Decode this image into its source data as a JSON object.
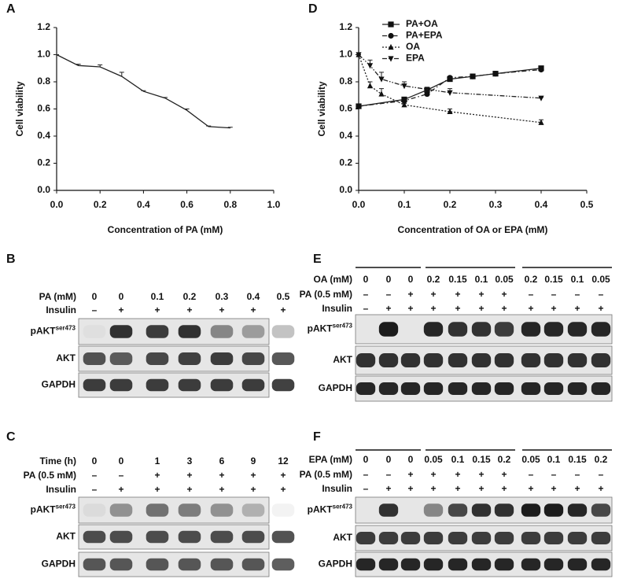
{
  "chart_data": [
    {
      "type": "line",
      "panel": "A",
      "xlabel": "Concentration of PA (mM)",
      "ylabel": "Cell viability",
      "xlim": [
        0,
        1
      ],
      "ylim": [
        0,
        1.2
      ],
      "xticks": [
        {
          "value": 0,
          "label": "0.0"
        },
        {
          "value": 0.2,
          "label": "0.2"
        },
        {
          "value": 0.4,
          "label": "0.4"
        },
        {
          "value": 0.6,
          "label": "0.6"
        },
        {
          "value": 0.8,
          "label": "0.8"
        },
        {
          "value": 1,
          "label": "1.0"
        }
      ],
      "yticks": [
        {
          "value": 0,
          "label": "0.0"
        },
        0.2,
        0.4,
        0.6,
        0.8,
        {
          "value": 1,
          "label": "1.0"
        },
        1.2
      ],
      "series": [
        {
          "color": "#222222",
          "marker": "none",
          "dash": "solid",
          "x": [
            0,
            0.1,
            0.2,
            0.3,
            0.4,
            0.5,
            0.6,
            0.7,
            0.8
          ],
          "values": [
            1.0,
            0.92,
            0.91,
            0.84,
            0.73,
            0.68,
            0.59,
            0.47,
            0.46
          ],
          "errors": [
            0,
            0.01,
            0.015,
            0.03,
            0.005,
            0.005,
            0.01,
            0.005,
            0.005
          ]
        }
      ]
    },
    {
      "type": "line",
      "panel": "D",
      "xlabel": "Concentration of OA or EPA (mM)",
      "ylabel": "Cell viability",
      "xlim": [
        0,
        0.5
      ],
      "ylim": [
        0,
        1.2
      ],
      "legend": "top",
      "xticks": [
        {
          "value": 0,
          "label": "0.0"
        },
        0.1,
        0.2,
        0.3,
        0.4,
        0.5
      ],
      "yticks": [
        {
          "value": 0,
          "label": "0.0"
        },
        0.2,
        0.4,
        0.6,
        0.8,
        {
          "value": 1,
          "label": "1.0"
        },
        1.2
      ],
      "series": [
        {
          "name": "PA+OA",
          "color": "#222222",
          "marker": "square",
          "dash": "solid",
          "x": [
            0,
            0.1,
            0.15,
            0.2,
            0.25,
            0.3,
            0.4
          ],
          "values": [
            0.62,
            0.67,
            0.74,
            0.82,
            0.84,
            0.86,
            0.9
          ],
          "errors": [
            0.01,
            0.01,
            0.02,
            0.01,
            0.005,
            0.005,
            0.01
          ]
        },
        {
          "name": "PA+EPA",
          "color": "#222222",
          "marker": "circle",
          "dash": "6 3 1.5 3",
          "x": [
            0,
            0.1,
            0.15,
            0.2,
            0.25,
            0.3,
            0.4
          ],
          "values": [
            0.62,
            0.66,
            0.71,
            0.83,
            0.84,
            0.86,
            0.89
          ],
          "errors": [
            0.01,
            0.01,
            0.02,
            0.01,
            0.005,
            0.005,
            0.01
          ]
        },
        {
          "name": "OA",
          "color": "#222222",
          "marker": "triangle-up",
          "dash": "2 2",
          "x": [
            0,
            0.025,
            0.05,
            0.1,
            0.2,
            0.4
          ],
          "values": [
            1.0,
            0.77,
            0.71,
            0.63,
            0.58,
            0.5
          ],
          "errors": [
            0,
            0.03,
            0.04,
            0.01,
            0.02,
            0.02
          ]
        },
        {
          "name": "EPA",
          "color": "#222222",
          "marker": "triangle-down",
          "dash": "6 2 1.5 2 1.5 2",
          "x": [
            0,
            0.025,
            0.05,
            0.1,
            0.2,
            0.4
          ],
          "values": [
            1.0,
            0.92,
            0.82,
            0.77,
            0.72,
            0.68
          ],
          "errors": [
            0,
            0.04,
            0.05,
            0.03,
            0.03,
            0.005
          ]
        }
      ]
    }
  ],
  "blots": [
    {
      "panel": "B",
      "rows": [
        {
          "label": "PA (mM)",
          "cells": [
            "0",
            "0",
            "0.1",
            "0.2",
            "0.3",
            "0.4",
            "0.5"
          ]
        },
        {
          "label": "Insulin",
          "cells": [
            "–",
            "+",
            "+",
            "+",
            "+",
            "+",
            "+"
          ]
        }
      ],
      "bands": [
        {
          "label": "pAKT",
          "sup": "ser473"
        },
        {
          "label": "AKT"
        },
        {
          "label": "GAPDH"
        }
      ]
    },
    {
      "panel": "C",
      "rows": [
        {
          "label": "Time (h)",
          "cells": [
            "0",
            "0",
            "1",
            "3",
            "6",
            "9",
            "12"
          ]
        },
        {
          "label": "PA (0.5 mM)",
          "cells": [
            "–",
            "–",
            "+",
            "+",
            "+",
            "+",
            "+"
          ]
        },
        {
          "label": "Insulin",
          "cells": [
            "–",
            "+",
            "+",
            "+",
            "+",
            "+",
            "+"
          ]
        }
      ],
      "bands": [
        {
          "label": "pAKT",
          "sup": "ser473"
        },
        {
          "label": "AKT"
        },
        {
          "label": "GAPDH"
        }
      ]
    },
    {
      "panel": "E",
      "rows": [
        {
          "label": "OA (mM)",
          "cells": [
            "0",
            "0",
            "0",
            "0.2",
            "0.15",
            "0.1",
            "0.05",
            "0.2",
            "0.15",
            "0.1",
            "0.05"
          ]
        },
        {
          "label": "PA (0.5 mM)",
          "cells": [
            "–",
            "–",
            "+",
            "+",
            "+",
            "+",
            "+",
            "–",
            "–",
            "–",
            "–"
          ]
        },
        {
          "label": "Insulin",
          "cells": [
            "–",
            "+",
            "+",
            "+",
            "+",
            "+",
            "+",
            "+",
            "+",
            "+",
            "+"
          ]
        }
      ],
      "bands": [
        {
          "label": "pAKT",
          "sup": "ser473"
        },
        {
          "label": "AKT"
        },
        {
          "label": "GAPDH"
        }
      ]
    },
    {
      "panel": "F",
      "rows": [
        {
          "label": "EPA (mM)",
          "cells": [
            "0",
            "0",
            "0",
            "0.05",
            "0.1",
            "0.15",
            "0.2",
            "0.05",
            "0.1",
            "0.15",
            "0.2"
          ]
        },
        {
          "label": "PA (0.5 mM)",
          "cells": [
            "–",
            "–",
            "+",
            "+",
            "+",
            "+",
            "+",
            "–",
            "–",
            "–",
            "–"
          ]
        },
        {
          "label": "Insulin",
          "cells": [
            "–",
            "+",
            "+",
            "+",
            "+",
            "+",
            "+",
            "+",
            "+",
            "+",
            "+"
          ]
        }
      ],
      "bands": [
        {
          "label": "pAKT",
          "sup": "ser473"
        },
        {
          "label": "AKT"
        },
        {
          "label": "GAPDH"
        }
      ]
    }
  ]
}
